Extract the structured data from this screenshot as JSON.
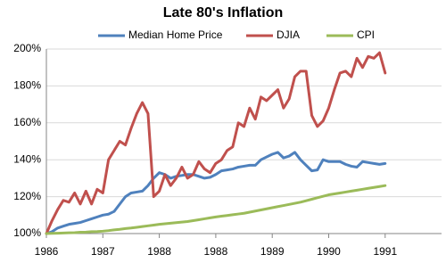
{
  "chart_data": {
    "type": "line",
    "title": "Late 80's Inflation",
    "categories": [
      "1986",
      null,
      null,
      null,
      null,
      null,
      null,
      null,
      null,
      null,
      "1987",
      null,
      null,
      null,
      null,
      null,
      null,
      null,
      null,
      null,
      "1988",
      null,
      null,
      null,
      null,
      null,
      null,
      null,
      null,
      null,
      "1988",
      null,
      null,
      null,
      null,
      null,
      null,
      null,
      null,
      null,
      "1989",
      null,
      null,
      null,
      null,
      null,
      null,
      null,
      null,
      null,
      "1990",
      null,
      null,
      null,
      null,
      null,
      null,
      null,
      null,
      null,
      "1991"
    ],
    "series": [
      {
        "name": "Median Home Price",
        "color": "#4f81bd",
        "values": [
          100,
          101,
          103,
          104,
          105,
          105.5,
          106,
          107,
          108,
          109,
          110,
          110.5,
          112,
          116,
          120,
          122,
          122.5,
          123,
          126,
          130,
          133,
          132,
          130,
          131,
          131.5,
          132,
          132,
          131,
          130,
          130.5,
          132,
          134,
          134.5,
          135,
          136,
          136.5,
          137,
          137,
          140,
          141.5,
          143,
          144,
          141,
          142,
          144,
          140,
          137,
          134,
          134.5,
          140,
          139,
          139,
          139,
          137.5,
          136.5,
          136,
          139,
          138.5,
          138,
          137.5,
          138
        ]
      },
      {
        "name": "DJIA",
        "color": "#c0504d",
        "values": [
          100,
          107,
          113,
          118,
          117,
          122,
          116,
          123,
          116,
          124,
          122,
          140,
          145,
          150,
          148,
          157,
          165,
          171,
          165,
          120,
          123,
          132,
          126,
          130,
          136,
          130,
          132,
          139,
          135,
          133,
          138,
          140,
          145,
          147,
          160,
          158,
          168,
          162,
          174,
          172,
          175,
          178,
          168,
          173,
          185,
          188,
          188,
          164,
          158,
          161,
          168,
          178,
          187,
          188,
          185,
          195,
          190,
          196,
          195,
          198,
          187
        ]
      },
      {
        "name": "CPI",
        "color": "#9bbb59",
        "values": [
          100,
          100.1,
          100.2,
          100.3,
          100.4,
          100.5,
          100.7,
          100.8,
          101,
          101.1,
          101.3,
          101.6,
          102,
          102.3,
          102.7,
          103,
          103.4,
          103.8,
          104.2,
          104.6,
          105,
          105.3,
          105.6,
          105.9,
          106.2,
          106.5,
          107,
          107.5,
          108,
          108.5,
          109,
          109.4,
          109.8,
          110.2,
          110.6,
          111,
          111.6,
          112.2,
          112.8,
          113.4,
          114,
          114.6,
          115.2,
          115.8,
          116.4,
          117,
          117.8,
          118.6,
          119.4,
          120.2,
          121,
          121.5,
          122,
          122.5,
          123,
          123.5,
          124,
          124.5,
          125,
          125.5,
          126
        ]
      }
    ],
    "ylim": [
      100,
      200
    ],
    "yticks": [
      {
        "value": 100,
        "label": "100%"
      },
      {
        "value": 120,
        "label": "120%"
      },
      {
        "value": 140,
        "label": "140%"
      },
      {
        "value": 160,
        "label": "160%"
      },
      {
        "value": 180,
        "label": "180%"
      },
      {
        "value": 200,
        "label": "200%"
      }
    ],
    "grid": true,
    "legend": "top"
  }
}
